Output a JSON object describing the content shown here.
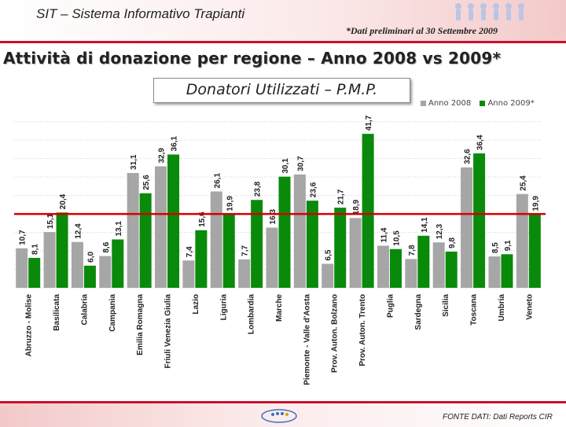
{
  "header": {
    "app_title": "SIT – Sistema Informativo Trapianti",
    "note": "*Dati preliminari al 30 Settembre 2009"
  },
  "slide_title": "Attività di donazione per regione – Anno 2008 vs 2009*",
  "box_title": "Donatori Utilizzati – P.M.P.",
  "footer": {
    "source": "FONTE DATI: Dati Reports CIR"
  },
  "colors": {
    "s2008": "#a6a6a6",
    "s2009": "#0a8a0a",
    "ref_line": "#d40000",
    "brand": "#c8102e"
  },
  "chart_data": {
    "type": "bar",
    "categories": [
      "Abruzzo - Molise",
      "Basilicata",
      "Calabria",
      "Campania",
      "Emilia Romagna",
      "Friuli Venezia Giulia",
      "Lazio",
      "Liguria",
      "Lombardia",
      "Marche",
      "Piemonte - Valle d'Aosta",
      "Prov. Auton. Bolzano",
      "Prov. Auton. Trento",
      "Puglia",
      "Sardegna",
      "Sicilia",
      "Toscana",
      "Umbria",
      "Veneto"
    ],
    "series": [
      {
        "name": "Anno 2008",
        "values": [
          10.7,
          15.1,
          12.4,
          8.6,
          31.1,
          32.9,
          7.4,
          26.1,
          7.7,
          16.3,
          30.7,
          6.5,
          18.9,
          11.4,
          7.8,
          12.3,
          32.6,
          8.5,
          25.4
        ]
      },
      {
        "name": "Anno 2009*",
        "values": [
          8.1,
          20.4,
          6.0,
          13.1,
          25.6,
          36.1,
          15.6,
          19.9,
          23.8,
          30.1,
          23.6,
          21.7,
          41.7,
          10.5,
          14.1,
          9.8,
          36.4,
          9.1,
          19.9
        ]
      }
    ],
    "ylim": [
      0,
      46
    ],
    "reference_value": 20,
    "grid": true,
    "legend": "top-right"
  }
}
